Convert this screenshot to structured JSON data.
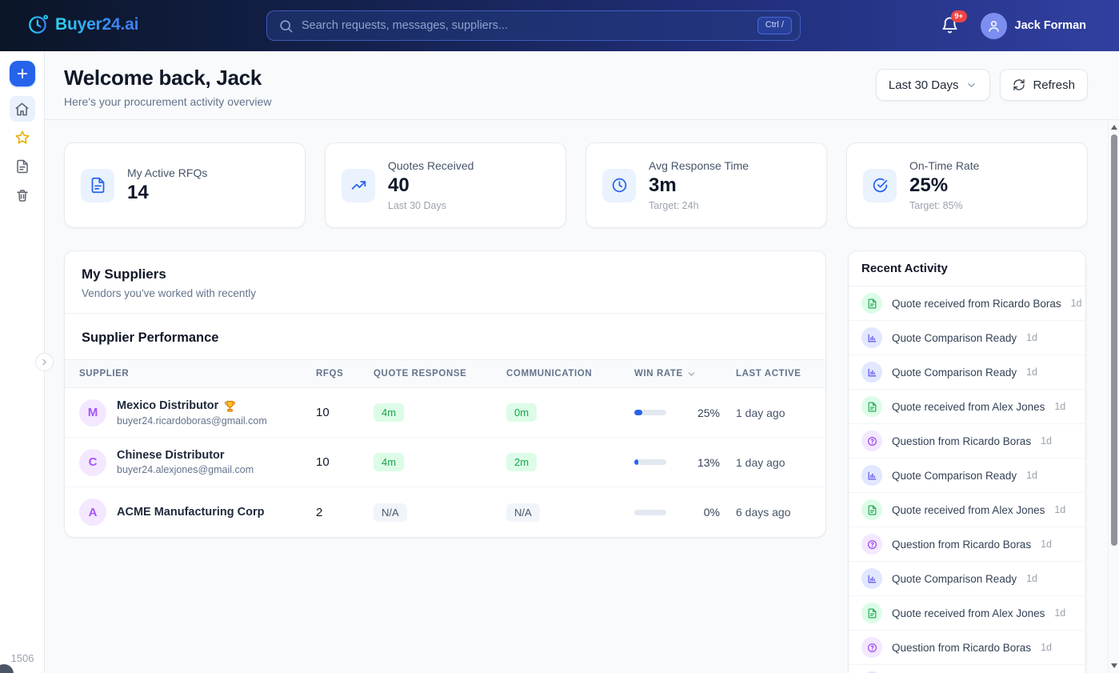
{
  "navbar": {
    "brand": "Buyer24.ai",
    "search": {
      "placeholder": "Search requests, messages, suppliers...",
      "shortcut": "Ctrl /"
    },
    "notifications_badge": "9+",
    "user_name": "Jack Forman"
  },
  "sidebar": {
    "counter": "1506"
  },
  "header": {
    "title": "Welcome back, Jack",
    "subtitle": "Here's your procurement activity overview",
    "range_selected": "Last 30 Days",
    "refresh_label": "Refresh"
  },
  "stats": [
    {
      "icon": "document",
      "label": "My Active RFQs",
      "value": "14",
      "sub": ""
    },
    {
      "icon": "trend-up",
      "label": "Quotes Received",
      "value": "40",
      "sub": "Last 30 Days"
    },
    {
      "icon": "clock",
      "label": "Avg Response Time",
      "value": "3m",
      "sub": "Target: 24h"
    },
    {
      "icon": "check-circle",
      "label": "On-Time Rate",
      "value": "25%",
      "sub": "Target: 85%"
    }
  ],
  "suppliers": {
    "title": "My Suppliers",
    "subtitle": "Vendors you've worked with recently",
    "section_title": "Supplier Performance",
    "columns": [
      "SUPPLIER",
      "RFQS",
      "QUOTE RESPONSE",
      "COMMUNICATION",
      "WIN RATE",
      "LAST ACTIVE"
    ],
    "rows": [
      {
        "initial": "M",
        "name": "Mexico Distributor",
        "trophy": true,
        "email": "buyer24.ricardoboras@gmail.com",
        "rfqs": "10",
        "quote_response": "4m",
        "communication": "0m",
        "win_rate": "25%",
        "win_rate_pct": 25,
        "last_active": "1 day ago"
      },
      {
        "initial": "C",
        "name": "Chinese Distributor",
        "trophy": false,
        "email": "buyer24.alexjones@gmail.com",
        "rfqs": "10",
        "quote_response": "4m",
        "communication": "2m",
        "win_rate": "13%",
        "win_rate_pct": 13,
        "last_active": "1 day ago"
      },
      {
        "initial": "A",
        "name": "ACME Manufacturing Corp",
        "trophy": false,
        "email": "",
        "rfqs": "2",
        "quote_response": "N/A",
        "communication": "N/A",
        "win_rate": "0%",
        "win_rate_pct": 0,
        "last_active": "6 days ago"
      }
    ]
  },
  "activity": {
    "title": "Recent Activity",
    "items": [
      {
        "icon": "quote",
        "text": "Quote received from Ricardo Boras",
        "time": "1d"
      },
      {
        "icon": "chart",
        "text": "Quote Comparison Ready",
        "time": "1d"
      },
      {
        "icon": "chart",
        "text": "Quote Comparison Ready",
        "time": "1d"
      },
      {
        "icon": "quote",
        "text": "Quote received from Alex Jones",
        "time": "1d"
      },
      {
        "icon": "question",
        "text": "Question from Ricardo Boras",
        "time": "1d"
      },
      {
        "icon": "chart",
        "text": "Quote Comparison Ready",
        "time": "1d"
      },
      {
        "icon": "quote",
        "text": "Quote received from Alex Jones",
        "time": "1d"
      },
      {
        "icon": "question",
        "text": "Question from Ricardo Boras",
        "time": "1d"
      },
      {
        "icon": "chart",
        "text": "Quote Comparison Ready",
        "time": "1d"
      },
      {
        "icon": "quote",
        "text": "Quote received from Alex Jones",
        "time": "1d"
      },
      {
        "icon": "question",
        "text": "Question from Ricardo Boras",
        "time": "1d"
      },
      {
        "icon": "chart",
        "text": "",
        "time": ""
      }
    ]
  },
  "colors": {
    "accent_blue": "#2563eb",
    "brand_cyan": "#22d3ee",
    "brand_blue": "#3b82f6",
    "nav_left": "#0b1528",
    "nav_right": "#313fa0",
    "success_green": "#16a34a",
    "success_bg": "#dcfce7",
    "indigo": "#4f46e5",
    "purple": "#9333ea",
    "badge_red": "#ef4444",
    "star_gold": "#eab308"
  }
}
